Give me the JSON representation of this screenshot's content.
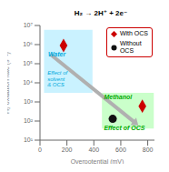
{
  "chart_data": {
    "type": "scatter",
    "title": "H₂ → 2H⁺ + 2e⁻",
    "xlabel": "Overpotential (mV)",
    "ylabel": "H₂ oxidation rate (s⁻¹)",
    "xlim": [
      0,
      850
    ],
    "xticks": [
      0,
      200,
      400,
      600,
      800
    ],
    "ylim": [
      10,
      10000000
    ],
    "yticks": [
      {
        "value": 10,
        "label": "10¹"
      },
      {
        "value": 100,
        "label": "10²"
      },
      {
        "value": 1000,
        "label": "10³"
      },
      {
        "value": 10000,
        "label": "10⁴"
      },
      {
        "value": 100000,
        "label": "10⁵"
      },
      {
        "value": 1000000,
        "label": "10⁶"
      },
      {
        "value": 10000000,
        "label": "10⁷"
      }
    ],
    "log": "y",
    "grid": false,
    "legend": "upper right",
    "series": [
      {
        "name": "With OCS",
        "color": "#cc0000",
        "marker": "diamond",
        "x": [
          175,
          760
        ],
        "values": [
          900000,
          600
        ]
      },
      {
        "name": "Without\nOCS",
        "color": "#111111",
        "marker": "circle",
        "x": [
          540
        ],
        "values": [
          130
        ]
      }
    ],
    "regions": [
      {
        "x": [
          30,
          390
        ],
        "y": [
          3000,
          6000000
        ],
        "color": "#b8eeff"
      },
      {
        "x": [
          460,
          845
        ],
        "y": [
          40,
          3000
        ],
        "color": "#b8ffb8"
      }
    ],
    "arrows": [
      {
        "x": [
          80,
          730
        ],
        "y": [
          300000,
          60
        ],
        "color": "#b0b0b0"
      }
    ],
    "annotations": [
      {
        "text": "Water",
        "x": 60,
        "y": 300000,
        "color": "#00aadd"
      },
      {
        "text": "Effect of\nsolvent\n& OCS",
        "x": 55,
        "y": 5000,
        "color": "#00aadd"
      },
      {
        "text": "Methanol",
        "x": 475,
        "y": 1800,
        "color": "#00aa00"
      },
      {
        "text": "Effect of OCS",
        "x": 475,
        "y": 43,
        "color": "#00aa00"
      }
    ]
  }
}
